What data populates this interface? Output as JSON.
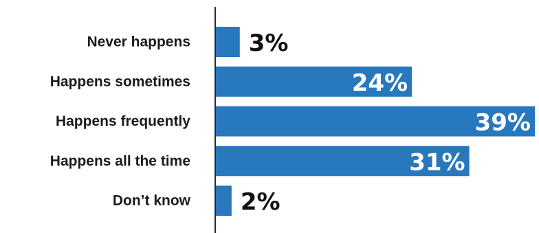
{
  "chart_data": {
    "type": "bar",
    "orientation": "horizontal",
    "categories": [
      "Never happens",
      "Happens sometimes",
      "Happens frequently",
      "Happens all the time",
      "Don’t know"
    ],
    "values": [
      3,
      24,
      39,
      31,
      2
    ],
    "value_labels": [
      "3%",
      "24%",
      "39%",
      "31%",
      "2%"
    ],
    "xlim": [
      0,
      39
    ],
    "grid": false,
    "legend": false,
    "colors": {
      "bar": "#2878be",
      "axis": "#1f2a44",
      "label_inside": "#ffffff",
      "label_outside": "#111111",
      "category_text": "#1a1a1a"
    }
  }
}
